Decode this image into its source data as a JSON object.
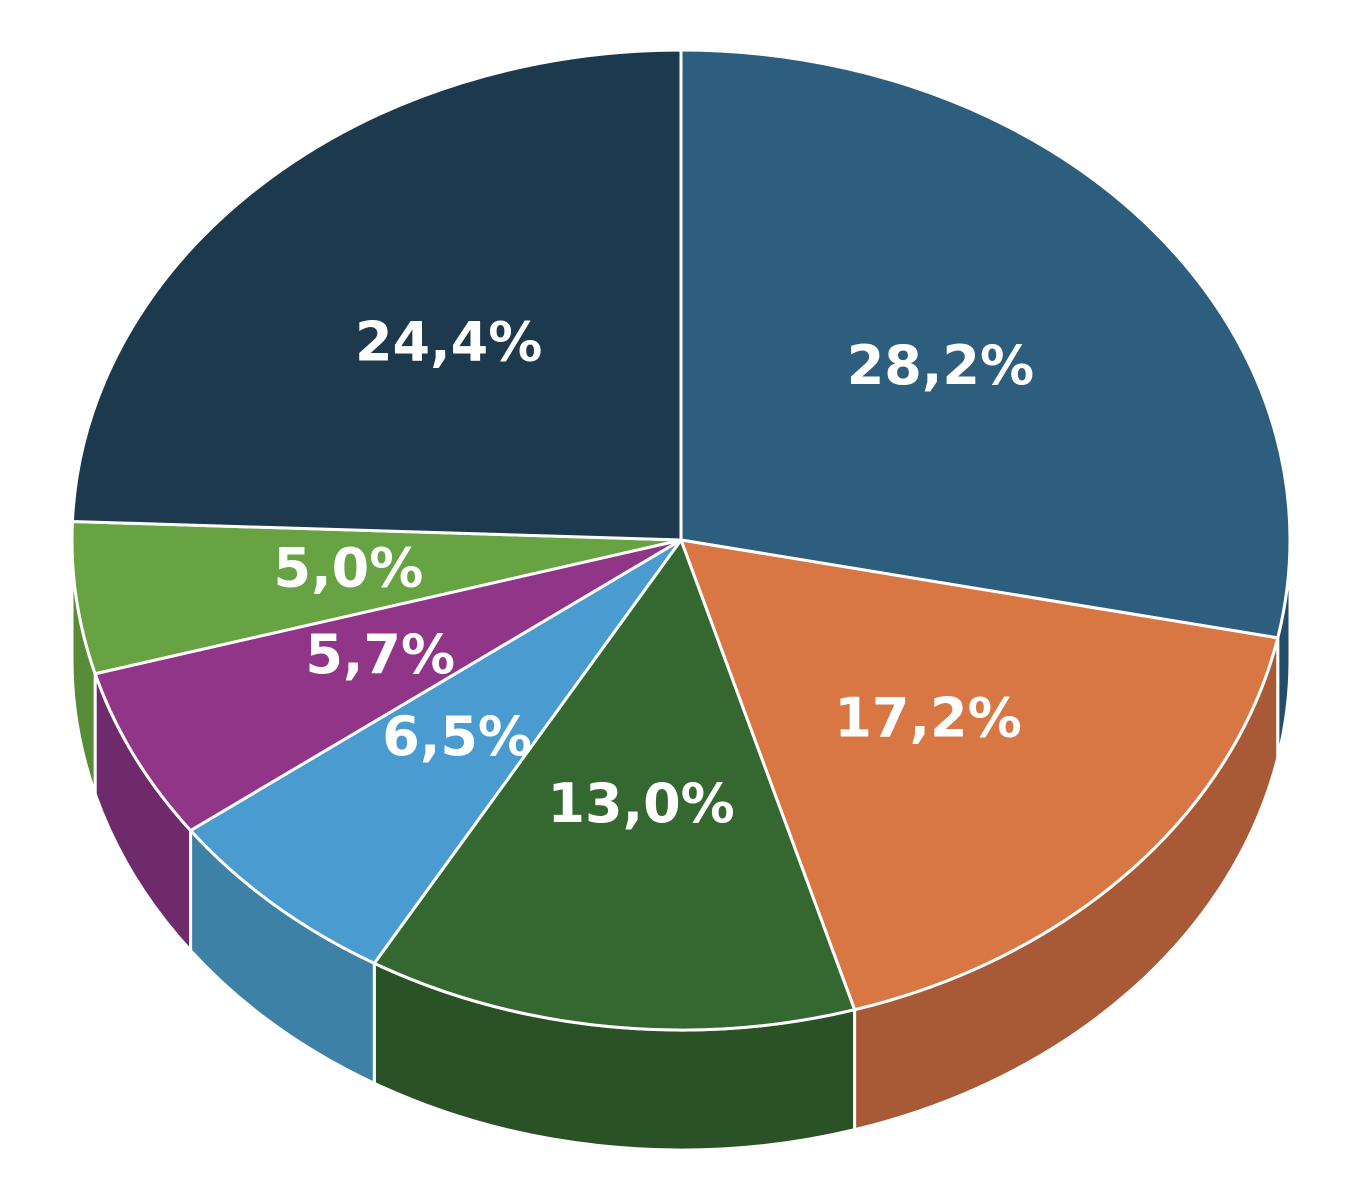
{
  "chart_data": {
    "type": "pie",
    "style": "3d-pie",
    "title": "",
    "start_angle_deg": 90,
    "direction": "clockwise",
    "slices": [
      {
        "label": "28,2%",
        "value": 28.2,
        "color": "#2e5e7e",
        "side_color": "#244d68"
      },
      {
        "label": "17,2%",
        "value": 17.2,
        "color": "#d87744",
        "side_color": "#a85a36"
      },
      {
        "label": "13,0%",
        "value": 13.0,
        "color": "#346830",
        "side_color": "#2b5226"
      },
      {
        "label": "6,5%",
        "value": 6.5,
        "color": "#4a9bd0",
        "side_color": "#3d81a6"
      },
      {
        "label": "5,7%",
        "value": 5.7,
        "color": "#913589",
        "side_color": "#6e2a6b"
      },
      {
        "label": "5,0%",
        "value": 5.0,
        "color": "#68a343",
        "side_color": "#588c37"
      },
      {
        "label": "24,4%",
        "value": 24.4,
        "color": "#1c394d",
        "side_color": "#163042"
      }
    ],
    "separator_color": "#ffffff",
    "legend": "none"
  }
}
